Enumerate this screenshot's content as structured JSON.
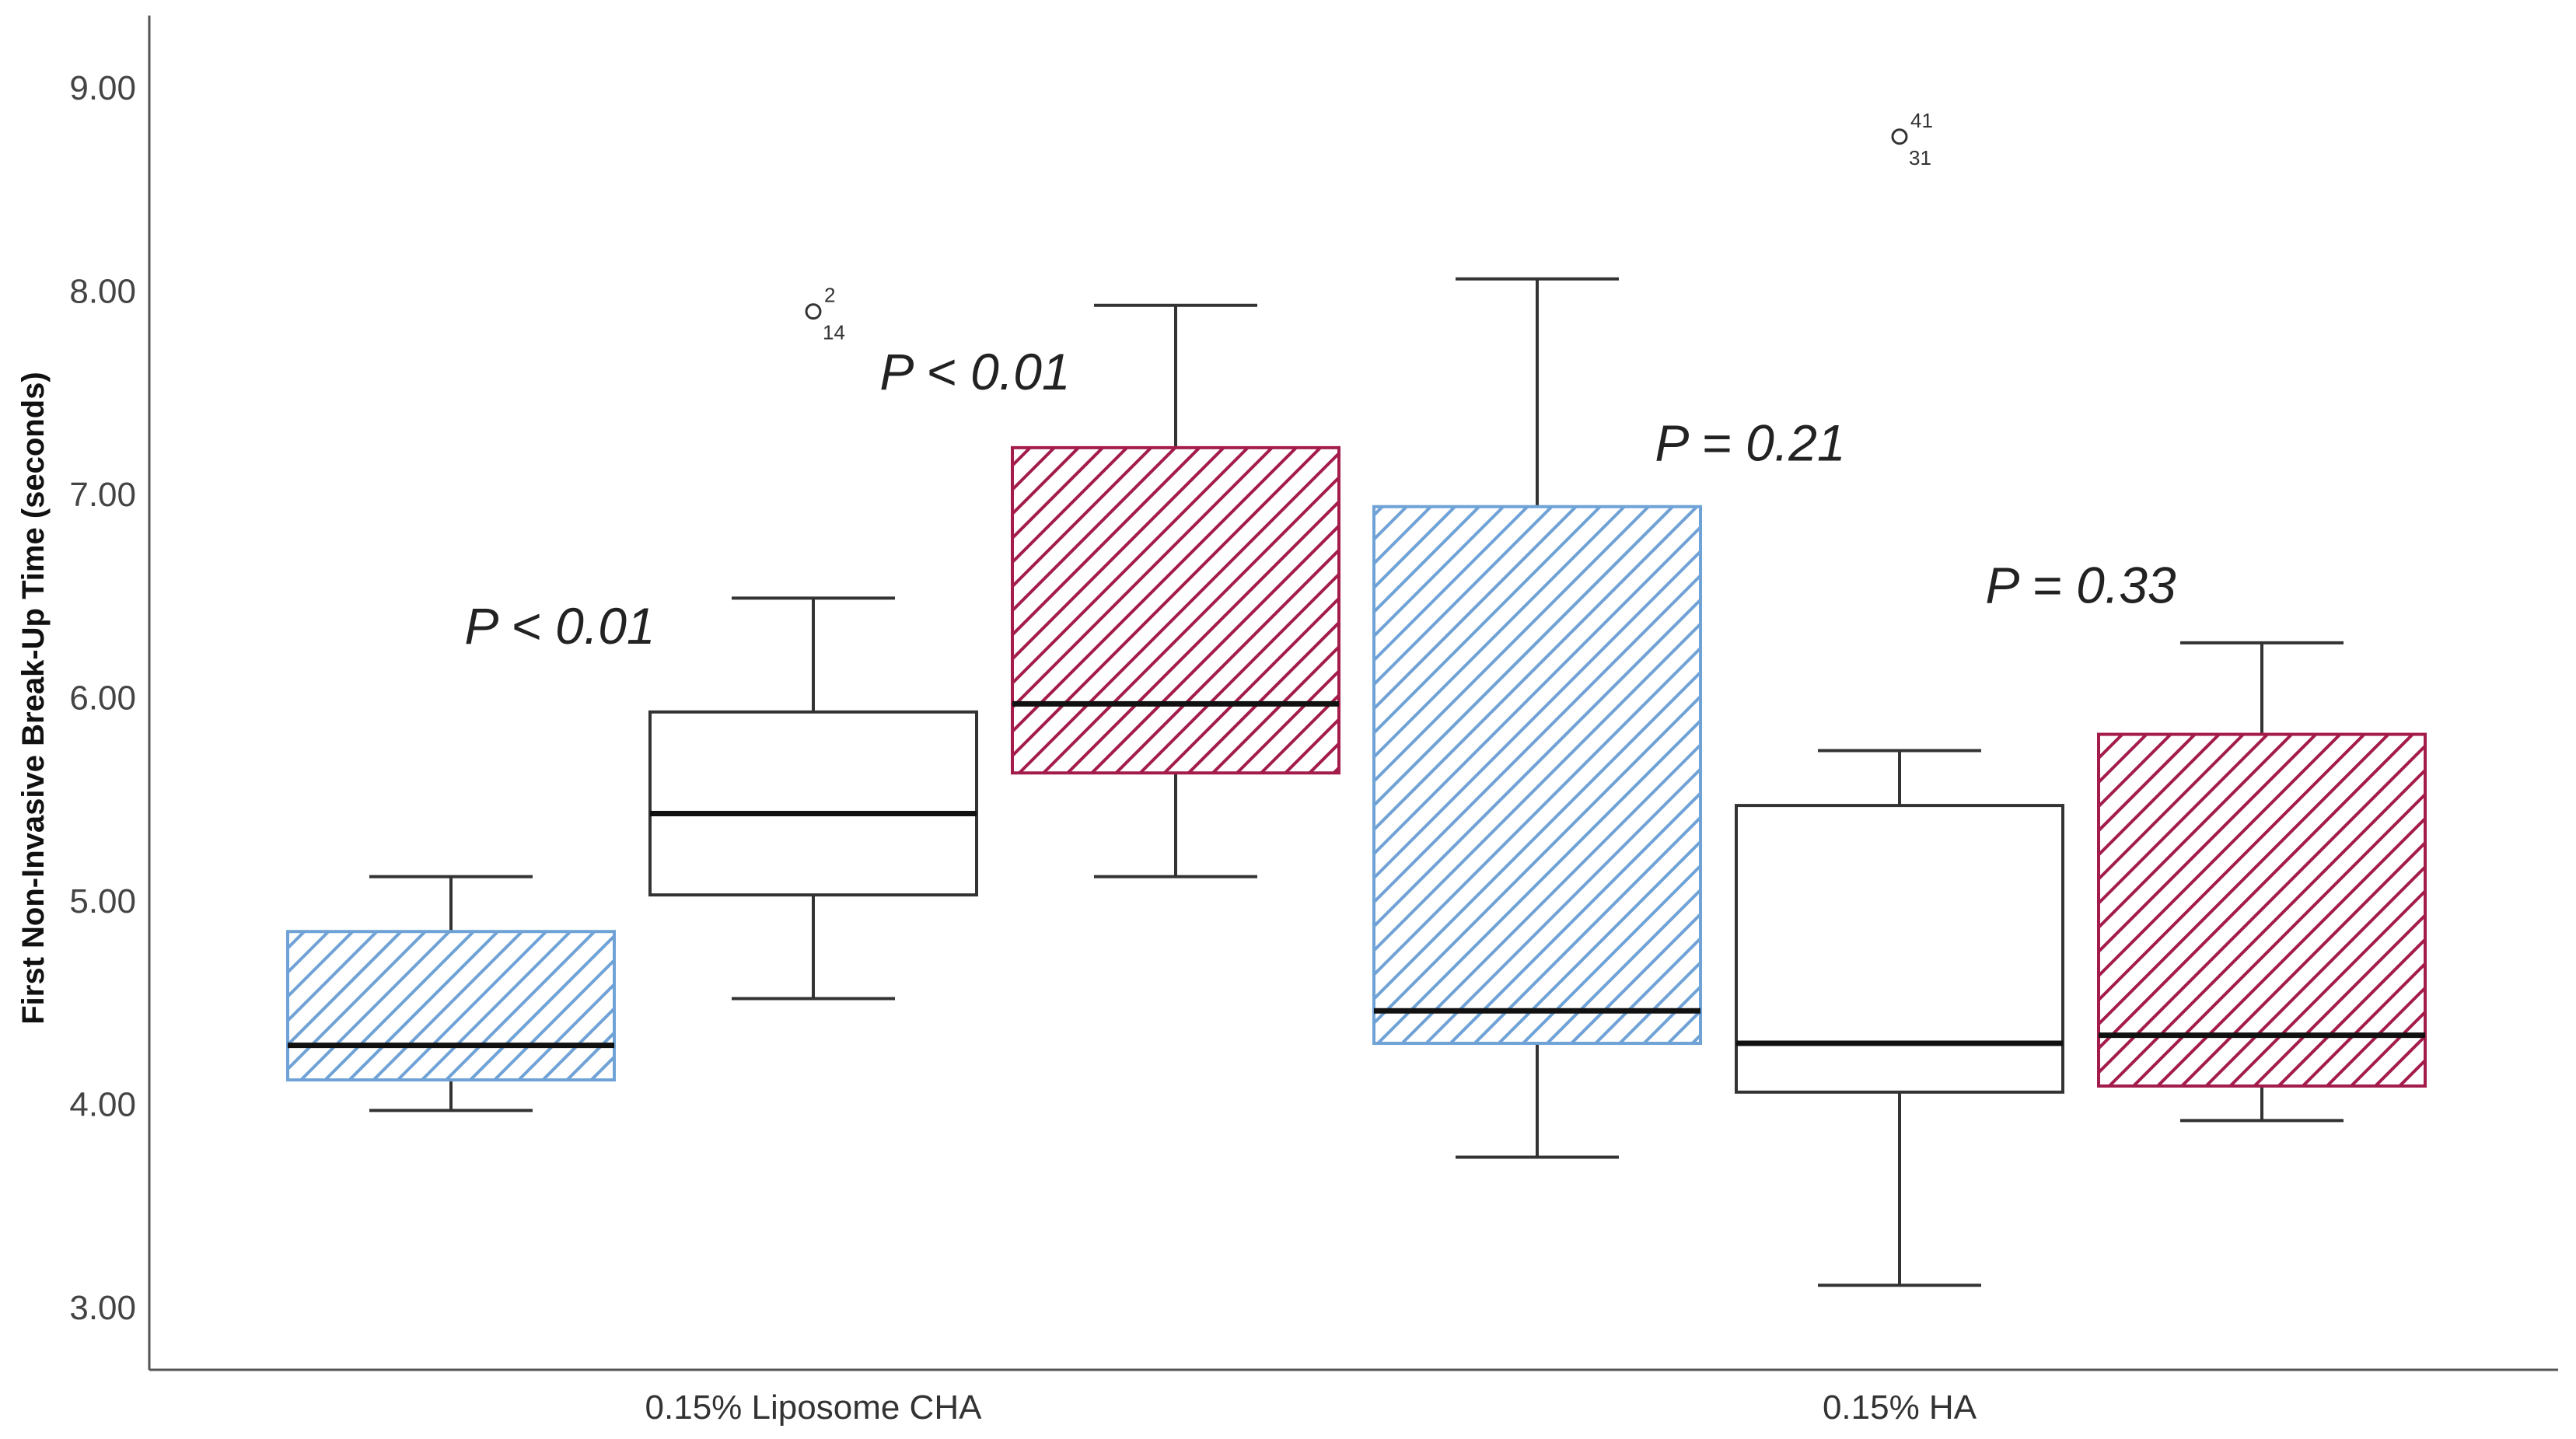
{
  "chart_data": {
    "type": "box",
    "title": "",
    "xlabel": "",
    "ylabel": "First Non-Invasive Break-Up Time (seconds)",
    "ylim": [
      3.0,
      9.0
    ],
    "yticks": [
      "3.00",
      "4.00",
      "5.00",
      "6.00",
      "7.00",
      "8.00",
      "9.00"
    ],
    "grid": false,
    "categories": [
      "0.15% Liposome CHA",
      "0.15% HA"
    ],
    "boxes": [
      {
        "group": 0,
        "pattern": "blue-hatch",
        "whisker_low": 3.97,
        "q1": 4.12,
        "median": 4.29,
        "q3": 4.85,
        "whisker_high": 5.12,
        "outliers": []
      },
      {
        "group": 0,
        "pattern": "white",
        "whisker_low": 4.52,
        "q1": 5.03,
        "median": 5.43,
        "q3": 5.93,
        "whisker_high": 6.49,
        "outliers": [
          {
            "value": 7.9,
            "labels": [
              "2",
              "14"
            ]
          }
        ]
      },
      {
        "group": 0,
        "pattern": "red-hatch",
        "whisker_low": 5.12,
        "q1": 5.63,
        "median": 5.97,
        "q3": 7.23,
        "whisker_high": 7.93,
        "outliers": []
      },
      {
        "group": 1,
        "pattern": "blue-hatch",
        "whisker_low": 3.74,
        "q1": 4.3,
        "median": 4.46,
        "q3": 6.94,
        "whisker_high": 8.06,
        "outliers": []
      },
      {
        "group": 1,
        "pattern": "white",
        "whisker_low": 3.11,
        "q1": 4.06,
        "median": 4.3,
        "q3": 5.47,
        "whisker_high": 5.74,
        "outliers": [
          {
            "value": 8.76,
            "labels": [
              "41",
              "31"
            ]
          }
        ]
      },
      {
        "group": 1,
        "pattern": "red-hatch",
        "whisker_low": 3.92,
        "q1": 4.09,
        "median": 4.34,
        "q3": 5.82,
        "whisker_high": 6.27,
        "outliers": []
      }
    ],
    "annotations": [
      {
        "text": "P < 0.01",
        "value": 6.35
      },
      {
        "text": "P < 0.01",
        "value": 7.6
      },
      {
        "text": "P = 0.21",
        "value": 7.25
      },
      {
        "text": "P = 0.33",
        "value": 6.55
      }
    ],
    "colors": {
      "blue_hatch": "#6fa2d6",
      "red_hatch": "#a31c4c",
      "box_outline": "#333333",
      "median": "#111111",
      "axis": "#555555"
    }
  }
}
